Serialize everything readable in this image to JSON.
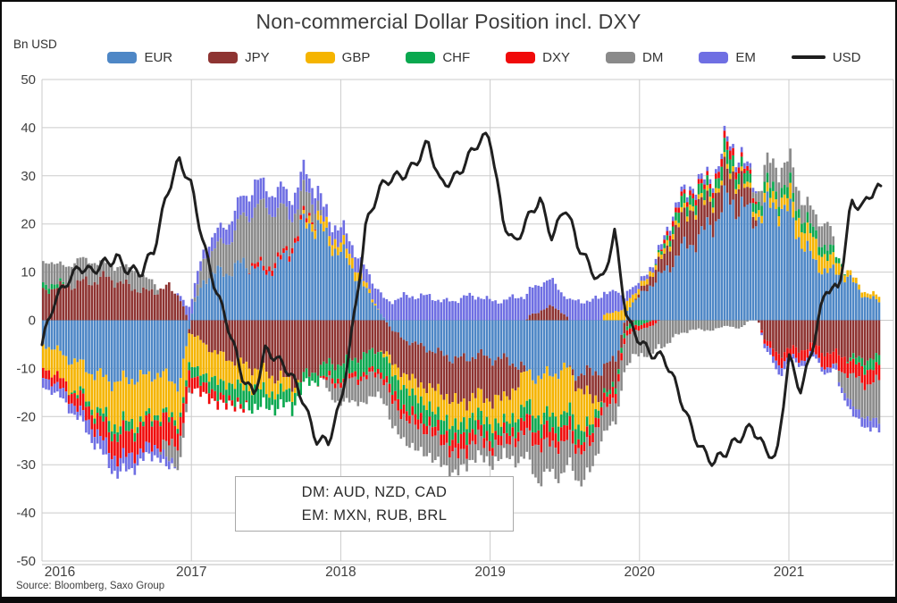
{
  "title": "Non-commercial Dollar Position incl. DXY",
  "y_axis_unit_label": "Bn USD",
  "source": "Source: Bloomberg,  Saxo Group",
  "annotation": {
    "line1": "DM: AUD, NZD, CAD",
    "line2": "EM: MXN, RUB, BRL"
  },
  "legend": [
    {
      "label": "EUR",
      "color": "#4e87c6",
      "type": "bar"
    },
    {
      "label": "JPY",
      "color": "#8e3432",
      "type": "bar"
    },
    {
      "label": "GBP",
      "color": "#f5b400",
      "type": "bar"
    },
    {
      "label": "CHF",
      "color": "#0aa84f",
      "type": "bar"
    },
    {
      "label": "DXY",
      "color": "#f00a0a",
      "type": "bar"
    },
    {
      "label": "DM",
      "color": "#8a8a8a",
      "type": "bar"
    },
    {
      "label": "EM",
      "color": "#6f6fe3",
      "type": "bar"
    },
    {
      "label": "USD",
      "color": "#1f1f1f",
      "type": "line"
    }
  ],
  "chart_data": {
    "type": "bar",
    "subtype": "stacked-bars-with-line-overlay",
    "title": "Non-commercial Dollar Position incl. DXY",
    "ylabel": "Bn USD",
    "ylim": [
      -50,
      50
    ],
    "y_ticks": [
      50,
      40,
      30,
      20,
      10,
      0,
      -10,
      -20,
      -30,
      -40,
      -50
    ],
    "x_tick_labels": [
      "2016",
      "2017",
      "2018",
      "2019",
      "2020",
      "2021"
    ],
    "x_monthly_start": "2016-01",
    "x_monthly_end": "2021-08",
    "grid": true,
    "legend_position": "top",
    "series": [
      {
        "name": "EUR",
        "color": "#4e87c6",
        "values": [
          -5,
          -6,
          -8,
          -9,
          -11,
          -12,
          -13,
          -12,
          -12,
          -11,
          -12,
          -13,
          2,
          9,
          10,
          10,
          12,
          11,
          10,
          12,
          15,
          20,
          20,
          16,
          14,
          10,
          6,
          2,
          -2,
          -4,
          -5,
          -6,
          -7,
          -8,
          -8,
          -7,
          -8,
          -8,
          -9,
          -11,
          -12,
          -11,
          -10,
          -11,
          -11,
          -10,
          -8,
          3,
          5,
          8,
          10,
          14,
          16,
          18,
          21,
          25,
          24,
          21,
          23,
          24,
          22,
          16,
          12,
          10,
          10,
          8,
          5,
          4
        ]
      },
      {
        "name": "JPY",
        "color": "#8e3432",
        "values": [
          6,
          7,
          7,
          8,
          8,
          9,
          8,
          7,
          6,
          6,
          7,
          5,
          -3,
          -5,
          -7,
          -8,
          -9,
          -10,
          -11,
          -12,
          -13,
          -12,
          -10,
          -9,
          -9,
          -8,
          -7,
          -6,
          -7,
          -7,
          -8,
          -8,
          -8,
          -9,
          -9,
          -8,
          -9,
          -8,
          -5,
          1,
          2,
          3,
          1,
          -3,
          -5,
          -6,
          -5,
          -1,
          1,
          2,
          4,
          6,
          7,
          6,
          5,
          6,
          5,
          3,
          -4,
          -7,
          -6,
          -6,
          -5,
          -7,
          -7,
          -8,
          -8,
          -8
        ]
      },
      {
        "name": "GBP",
        "color": "#f5b400",
        "values": [
          -5,
          -5,
          -6,
          -6,
          -7,
          -8,
          -9,
          -9,
          -9,
          -8,
          -8,
          -7,
          -7,
          -6,
          -6,
          -5,
          -5,
          -4,
          -4,
          -3,
          -2,
          1,
          2,
          2,
          2,
          2,
          1,
          0,
          -2,
          -3,
          -3,
          -4,
          -5,
          -5,
          -4,
          -4,
          -5,
          -5,
          -6,
          -7,
          -8,
          -9,
          -9,
          -8,
          -6,
          1,
          2,
          2,
          1,
          1,
          1,
          1,
          1,
          1,
          1,
          1,
          1,
          1,
          2,
          2,
          3,
          4,
          4,
          3,
          2,
          1,
          1,
          1
        ]
      },
      {
        "name": "CHF",
        "color": "#0aa84f",
        "values": [
          1,
          1,
          0,
          -1,
          -1,
          -2,
          -2,
          -2,
          -1,
          -1,
          -1,
          -1,
          -2,
          -2,
          -3,
          -3,
          -4,
          -4,
          -3,
          -3,
          -3,
          -2,
          -2,
          -3,
          -3,
          -3,
          -4,
          -4,
          -4,
          -4,
          -4,
          -3,
          -3,
          -3,
          -3,
          -3,
          -3,
          -2,
          -3,
          -3,
          -3,
          -3,
          -3,
          -3,
          -2,
          -1,
          -1,
          -1,
          -1,
          0,
          1,
          2,
          2,
          2,
          2,
          3,
          2,
          2,
          2,
          2,
          2,
          2,
          2,
          2,
          1,
          -1,
          -2,
          -2
        ]
      },
      {
        "name": "DXY",
        "color": "#f00a0a",
        "values": [
          -2,
          -2,
          -2,
          -3,
          -3,
          -4,
          -5,
          -5,
          -5,
          -6,
          -5,
          -4,
          -3,
          -2,
          -2,
          -1,
          -1,
          1,
          1,
          1,
          1,
          1,
          0,
          -1,
          -1,
          -1,
          -1,
          -1,
          -2,
          -2,
          -2,
          -2,
          -2,
          -3,
          -3,
          -2,
          -2,
          -2,
          -2,
          -3,
          -3,
          -3,
          -3,
          -2,
          -2,
          -2,
          -2,
          -1,
          -1,
          -1,
          1,
          1,
          1,
          1,
          1,
          2,
          1,
          1,
          -1,
          -2,
          -2,
          -2,
          -2,
          -3,
          -3,
          -3,
          -3,
          -3
        ]
      },
      {
        "name": "DM",
        "color": "#8a8a8a",
        "values": [
          5,
          4,
          4,
          5,
          4,
          3,
          3,
          4,
          3,
          2,
          -4,
          -4,
          0,
          5,
          5,
          7,
          9,
          12,
          12,
          10,
          6,
          5,
          3,
          -3,
          -4,
          -5,
          -5,
          -4,
          -5,
          -5,
          -5,
          -5,
          -5,
          -4,
          -3,
          -4,
          -3,
          -3,
          -4,
          -6,
          -7,
          -6,
          -6,
          -6,
          -6,
          -5,
          -5,
          -6,
          -5,
          -6,
          -5,
          -3,
          -2,
          -2,
          -2,
          -1,
          -2,
          1,
          4,
          5,
          5,
          4,
          3,
          6,
          -3,
          -6,
          -7,
          -8
        ]
      },
      {
        "name": "EM",
        "color": "#6f6fe3",
        "values": [
          -2,
          -2,
          -2,
          -2,
          -3,
          -3,
          -3,
          -3,
          -2,
          -2,
          -2,
          1,
          3,
          2,
          3,
          4,
          4,
          5,
          4,
          4,
          4,
          4,
          3,
          3,
          3,
          3,
          3,
          4,
          4,
          5,
          5,
          5,
          4,
          4,
          5,
          5,
          4,
          4,
          5,
          5,
          6,
          5,
          4,
          4,
          4,
          5,
          4,
          2,
          1,
          1,
          1,
          1,
          1,
          1,
          1,
          1,
          1,
          1,
          -1,
          -2,
          -1,
          -1,
          -1,
          -1,
          -1,
          -2,
          -2,
          -2
        ]
      }
    ],
    "line_series": {
      "name": "USD",
      "color": "#1f1f1f",
      "values": [
        -6,
        4,
        9,
        11,
        9,
        12,
        14,
        10,
        9,
        15,
        27,
        33,
        27,
        16,
        7,
        -2,
        -12,
        -15,
        -5,
        -9,
        -12,
        -16,
        -24,
        -26,
        -18,
        0,
        20,
        26,
        29,
        31,
        33,
        36,
        28,
        30,
        33,
        36,
        38,
        22,
        16,
        20,
        25,
        18,
        24,
        15,
        11,
        9,
        18,
        -1,
        -4,
        -6,
        -8,
        -15,
        -21,
        -26,
        -30,
        -28,
        -24,
        -21,
        -27,
        -30,
        -7,
        -14,
        -5,
        6,
        7,
        25,
        23,
        27
      ]
    }
  }
}
